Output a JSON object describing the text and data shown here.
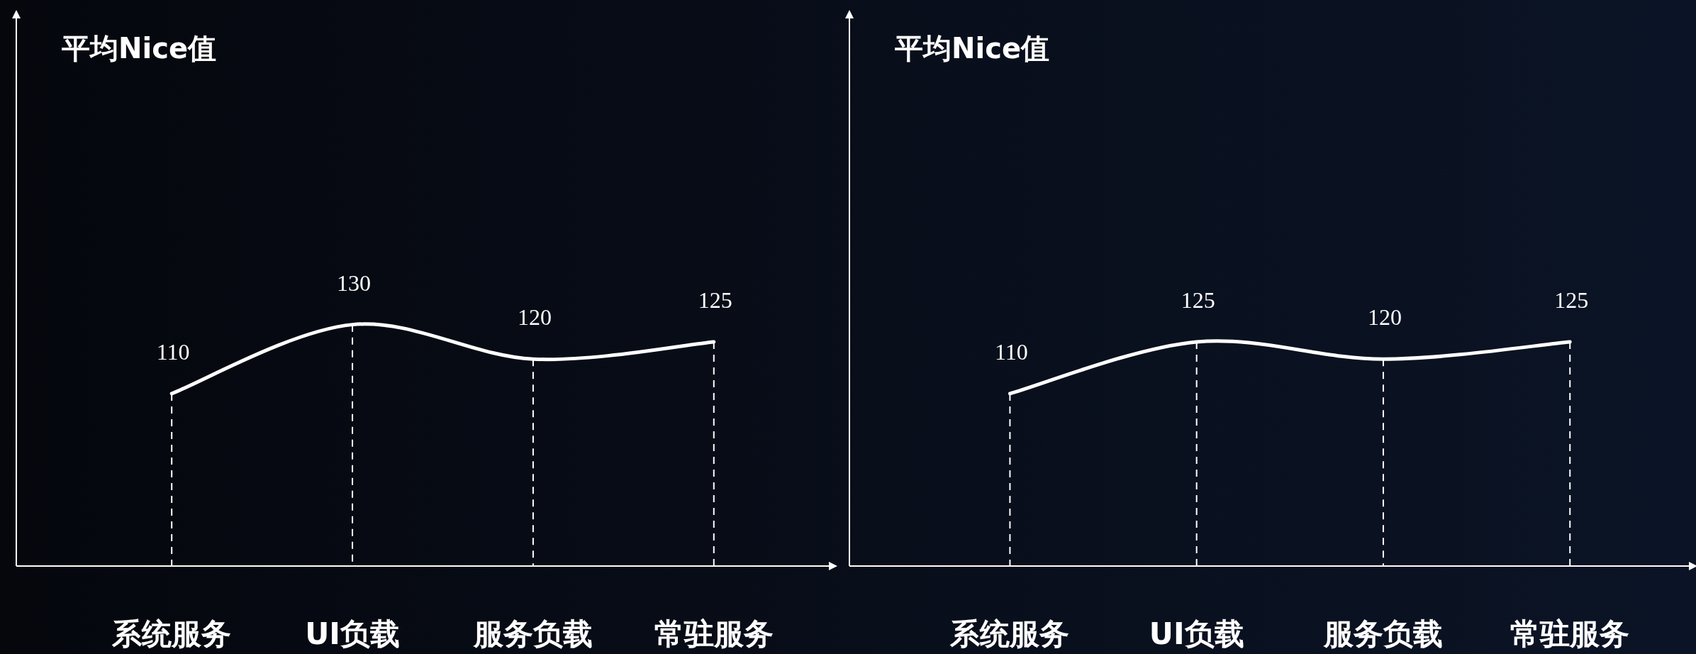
{
  "chart_data": [
    {
      "type": "line",
      "title": "平均Nice值",
      "categories": [
        "系统服务",
        "UI负载",
        "服务负载",
        "常驻服务"
      ],
      "ylim": [
        60,
        220
      ],
      "data_labels": true,
      "tick_labels": "x",
      "series": [
        {
          "color": "#ffffff",
          "values": [
            110,
            130,
            120,
            125
          ]
        }
      ]
    },
    {
      "type": "line",
      "title": "平均Nice值",
      "categories": [
        "系统服务",
        "UI负载",
        "服务负载",
        "常驻服务"
      ],
      "ylim": [
        60,
        220
      ],
      "data_labels": true,
      "tick_labels": "x",
      "series": [
        {
          "color": "#ffffff",
          "values": [
            110,
            125,
            120,
            125
          ]
        }
      ]
    }
  ]
}
